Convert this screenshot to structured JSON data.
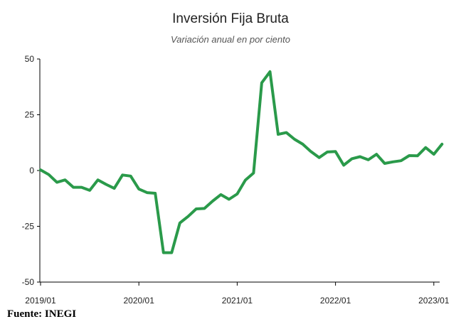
{
  "chart_data": {
    "type": "line",
    "title": "Inversión Fija Bruta",
    "subtitle": "Variación anual en por ciento",
    "xlabel": "",
    "ylabel": "",
    "ylim": [
      -50,
      50
    ],
    "y_ticks": [
      50,
      25,
      0,
      -25,
      -50
    ],
    "y_tick_labels": [
      "50",
      "25",
      "0",
      "-25",
      "-50"
    ],
    "x_ticks": [
      "2019/01",
      "2020/01",
      "2021/01",
      "2022/01",
      "2023/01"
    ],
    "grid": false,
    "color": "#2a9a4a",
    "series": [
      {
        "x": [
          "2019/01",
          "2019/02",
          "2019/03",
          "2019/04",
          "2019/05",
          "2019/06",
          "2019/07",
          "2019/08",
          "2019/09",
          "2019/10",
          "2019/11",
          "2019/12",
          "2020/01",
          "2020/02",
          "2020/03",
          "2020/04",
          "2020/05",
          "2020/06",
          "2020/07",
          "2020/08",
          "2020/09",
          "2020/10",
          "2020/11",
          "2020/12",
          "2021/01",
          "2021/02",
          "2021/03",
          "2021/04",
          "2021/05",
          "2021/06",
          "2021/07",
          "2021/08",
          "2021/09",
          "2021/10",
          "2021/11",
          "2021/12",
          "2022/01",
          "2022/02",
          "2022/03",
          "2022/04",
          "2022/05",
          "2022/06",
          "2022/07",
          "2022/08",
          "2022/09",
          "2022/10",
          "2022/11",
          "2022/12",
          "2023/01",
          "2023/02"
        ],
        "values": [
          0.3,
          -1.8,
          -5.3,
          -4.2,
          -7.5,
          -7.5,
          -8.9,
          -4.2,
          -6.2,
          -8.0,
          -2.0,
          -2.5,
          -8.3,
          -9.9,
          -10.2,
          -36.8,
          -36.8,
          -23.5,
          -20.6,
          -17.2,
          -17.0,
          -13.7,
          -10.8,
          -12.9,
          -10.5,
          -4.3,
          -1.1,
          39.3,
          44.3,
          16.2,
          17.0,
          14.0,
          11.8,
          8.5,
          5.8,
          8.3,
          8.5,
          2.4,
          5.3,
          6.2,
          4.8,
          7.3,
          3.2,
          3.9,
          4.4,
          6.7,
          6.6,
          10.3,
          7.3,
          11.8
        ]
      }
    ]
  },
  "source": "Fuente: INEGI"
}
